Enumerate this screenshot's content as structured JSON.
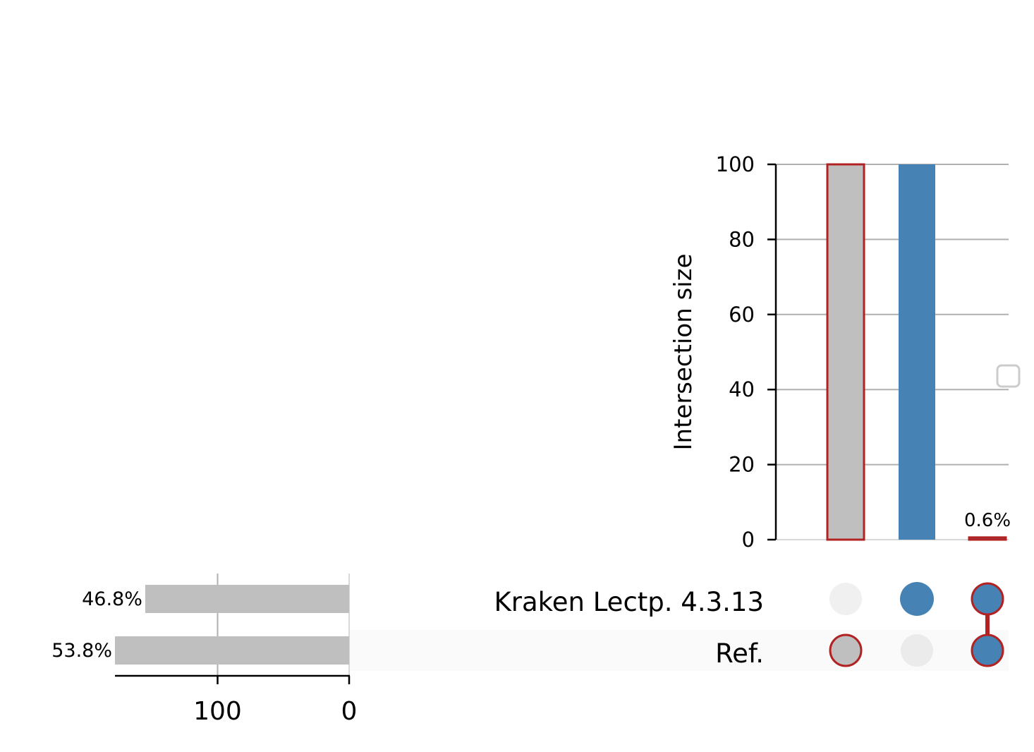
{
  "chart_data": {
    "type": "upset",
    "intersections": {
      "ylabel": "Intersection size",
      "ylim": [
        0,
        100
      ],
      "yticks": [
        0,
        20,
        40,
        60,
        80,
        100
      ],
      "grid": true,
      "bars": [
        {
          "sets": [
            "Ref."
          ],
          "value": 100,
          "color": "#bfbfbf",
          "highlighted": true,
          "label": ""
        },
        {
          "sets": [
            "Kraken Lectp. 4.3.13"
          ],
          "value": 100,
          "color": "#4682b4",
          "highlighted": false,
          "label": ""
        },
        {
          "sets": [
            "Kraken Lectp. 4.3.13",
            "Ref."
          ],
          "value": 0.6,
          "color": "#4682b4",
          "highlighted": true,
          "label": "0.6%"
        }
      ],
      "legend": "right"
    },
    "sets": [
      {
        "name": "Kraken Lectp. 4.3.13",
        "size": 155,
        "label": "46.8%"
      },
      {
        "name": "Ref.",
        "size": 178,
        "label": "53.8%"
      }
    ],
    "set_size_axis": {
      "ticks": [
        100,
        0
      ],
      "direction": "reversed",
      "range": [
        178,
        0
      ]
    },
    "matrix": [
      {
        "column": 0,
        "members": [
          "Ref."
        ],
        "color": "#bfbfbf",
        "highlighted": true
      },
      {
        "column": 1,
        "members": [
          "Kraken Lectp. 4.3.13"
        ],
        "color": "#4682b4",
        "highlighted": false
      },
      {
        "column": 2,
        "members": [
          "Kraken Lectp. 4.3.13",
          "Ref."
        ],
        "color": "#4682b4",
        "highlighted": true
      }
    ],
    "colors": {
      "default_bar": "#bfbfbf",
      "accent": "#4682b4",
      "highlight_edge": "#b22222",
      "inactive_dot": "#f0f0f0",
      "grid": "#b0b0b0",
      "row_shade": "#fafafa"
    }
  }
}
